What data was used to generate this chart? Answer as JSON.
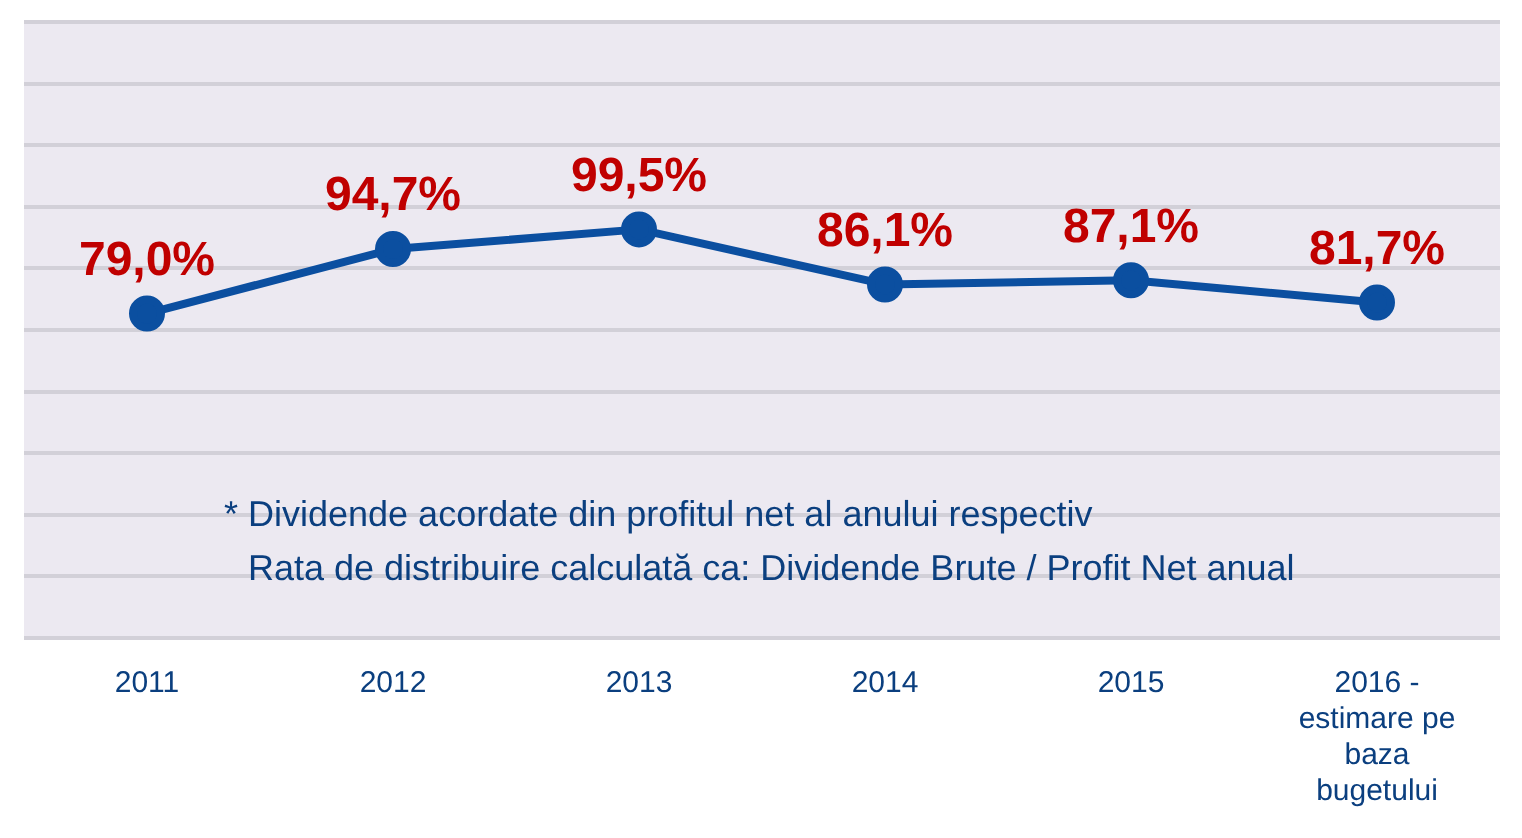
{
  "chart_data": {
    "type": "line",
    "categories": [
      "2011",
      "2012",
      "2013",
      "2014",
      "2015",
      "2016 - estimare pe baza bugetului"
    ],
    "series": [
      {
        "color": "#0b4fa0",
        "values": [
          79.0,
          94.7,
          99.5,
          86.1,
          87.1,
          81.7
        ],
        "value_labels": [
          "79,0%",
          "94,7%",
          "99,5%",
          "86,1%",
          "87,1%",
          "81,7%"
        ]
      }
    ],
    "ylim": [
      0,
      150
    ],
    "yticks": [
      {
        "value": 0,
        "label": null
      },
      {
        "value": 15,
        "label": null
      },
      {
        "value": 30,
        "label": null
      },
      {
        "value": 45,
        "label": null
      },
      {
        "value": 60,
        "label": null
      },
      {
        "value": 75,
        "label": null
      },
      {
        "value": 90,
        "label": null
      },
      {
        "value": 105,
        "label": null
      },
      {
        "value": 120,
        "label": null
      },
      {
        "value": 135,
        "label": null
      },
      {
        "value": 150,
        "label": null
      }
    ],
    "tick_labels": "x",
    "grid": "y",
    "marker": "circle",
    "line_style": "solid",
    "legend": false,
    "annotations": [
      "* Dividende acordate din profitul net al anului respectiv",
      "Rata de distribuire calculată ca: Dividende Brute / Profit Net anual"
    ]
  }
}
